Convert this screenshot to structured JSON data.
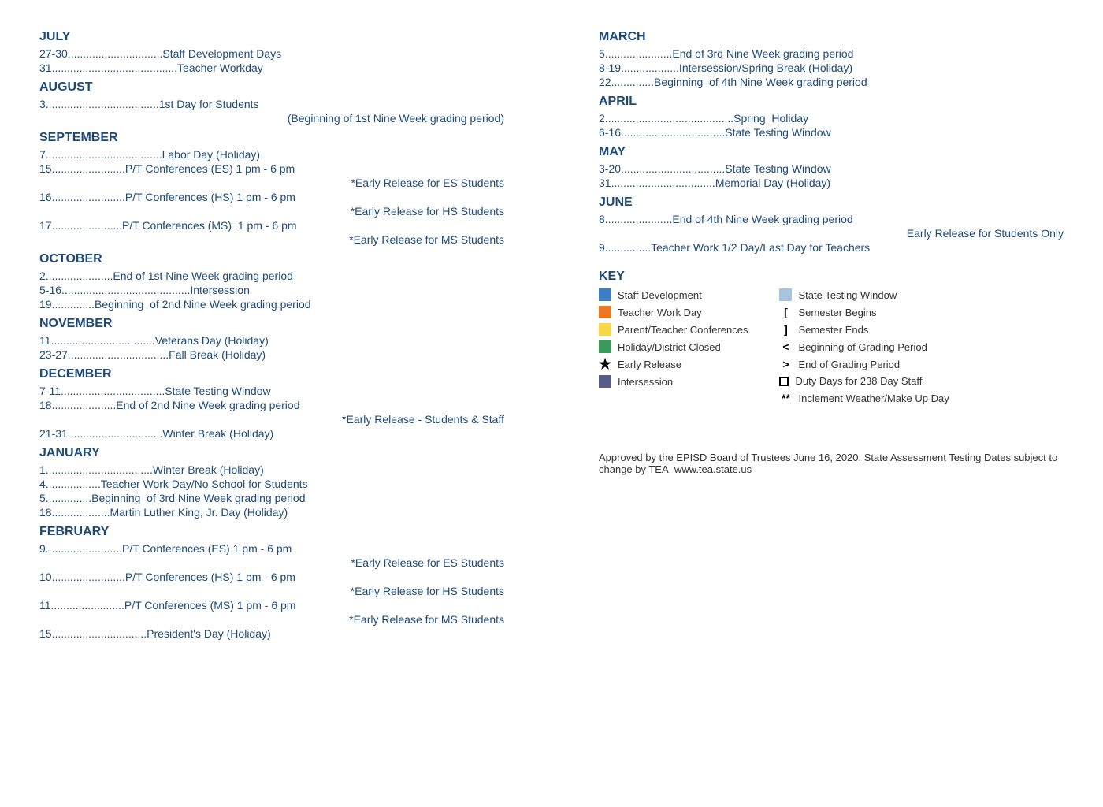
{
  "left": {
    "july": {
      "header": "JULY",
      "items": [
        {
          "dates": "27-30",
          "text": "Staff Development Days"
        },
        {
          "dates": "31",
          "text": "Teacher Workday"
        }
      ]
    },
    "august": {
      "header": "AUGUST",
      "items": [
        {
          "dates": "3",
          "text": "1st Day for Students"
        }
      ],
      "subs": [
        "(Beginning of 1st Nine Week grading period)"
      ]
    },
    "september": {
      "header": "SEPTEMBER",
      "items": [
        {
          "dates": "7",
          "text": "Labor Day (Holiday)"
        },
        {
          "dates": "15",
          "text": "P/T Conferences (ES) 1 pm - 6 pm"
        },
        {
          "sub": "*Early Release for ES Students"
        },
        {
          "dates": "16",
          "text": "P/T Conferences (HS) 1 pm - 6 pm"
        },
        {
          "sub": "*Early Release for HS Students"
        },
        {
          "dates": "17",
          "text": "P/T Conferences (MS)  1 pm - 6 pm"
        },
        {
          "sub": "*Early Release for MS Students"
        }
      ]
    },
    "october": {
      "header": "OCTOBER",
      "items": [
        {
          "dates": "2",
          "text": "End of 1st Nine Week grading period"
        },
        {
          "dates": "5-16",
          "text": "Intersession"
        },
        {
          "dates": "19",
          "text": "Beginning  of 2nd Nine Week grading period"
        }
      ]
    },
    "november": {
      "header": "NOVEMBER",
      "items": [
        {
          "dates": "11",
          "text": "Veterans Day (Holiday)"
        },
        {
          "dates": "23-27",
          "text": "Fall Break (Holiday)"
        }
      ]
    },
    "december": {
      "header": "DECEMBER",
      "items": [
        {
          "dates": "7-11",
          "text": "State Testing Window"
        },
        {
          "dates": "18",
          "text": "End of 2nd Nine Week grading period"
        },
        {
          "sub": "*Early Release - Students & Staff"
        },
        {
          "dates": "21-31",
          "text": "Winter Break (Holiday)"
        }
      ]
    },
    "january": {
      "header": "JANUARY",
      "items": [
        {
          "dates": "1",
          "text": "Winter Break (Holiday)"
        },
        {
          "dates": "4",
          "text": "Teacher Work Day/No School for Students"
        },
        {
          "dates": "5",
          "text": "Beginning  of 3rd Nine Week grading period"
        },
        {
          "dates": "18",
          "text": "Martin Luther King, Jr. Day (Holiday)"
        }
      ]
    },
    "february": {
      "header": "FEBRUARY",
      "items": [
        {
          "dates": "9",
          "text": "P/T Conferences (ES) 1 pm - 6 pm"
        },
        {
          "sub": "*Early Release for ES Students"
        },
        {
          "dates": "10",
          "text": "P/T Conferences (HS) 1 pm - 6 pm"
        },
        {
          "sub": "*Early Release for HS Students"
        },
        {
          "dates": "11",
          "text": "P/T Conferences (MS) 1 pm - 6 pm"
        },
        {
          "sub": "*Early Release for MS Students"
        },
        {
          "dates": "15",
          "text": "President's Day (Holiday)"
        }
      ]
    }
  },
  "right": {
    "march": {
      "header": "MARCH",
      "items": [
        {
          "dates": "5",
          "text": "End of 3rd Nine Week grading period"
        },
        {
          "dates": "8-19",
          "text": "Intersession/Spring Break (Holiday)"
        },
        {
          "dates": "22",
          "text": "Beginning  of 4th Nine Week grading period"
        }
      ]
    },
    "april": {
      "header": "APRIL",
      "items": [
        {
          "dates": "2",
          "text": "Spring  Holiday"
        },
        {
          "dates": "6-16",
          "text": "State Testing Window"
        }
      ]
    },
    "may": {
      "header": "MAY",
      "items": [
        {
          "dates": "3-20",
          "text": "State Testing Window"
        },
        {
          "dates": "31",
          "text": "Memorial Day (Holiday)"
        }
      ]
    },
    "june": {
      "header": "JUNE",
      "items": [
        {
          "dates": "8",
          "text": "End of 4th Nine Week grading period"
        },
        {
          "sub": "Early Release for Students Only"
        },
        {
          "dates": "9",
          "text": "Teacher Work 1/2 Day/Last Day for Teachers"
        }
      ]
    }
  },
  "key": {
    "header": "KEY",
    "left_items": [
      {
        "color": "#3a7fc3",
        "label": "Staff Development"
      },
      {
        "color": "#e87824",
        "label": "Teacher Work Day"
      },
      {
        "color": "#f9d648",
        "label": "Parent/Teacher Conferences"
      },
      {
        "color": "#3a9b5c",
        "label": "Holiday/District Closed"
      },
      {
        "symbol": "star",
        "label": "Early Release"
      },
      {
        "color": "#5a5a8a",
        "label": "Intersession"
      }
    ],
    "right_items": [
      {
        "color": "#a8c5e0",
        "label": "State Testing Window"
      },
      {
        "symbol": "[",
        "label": "Semester Begins"
      },
      {
        "symbol": "]",
        "label": "Semester Ends"
      },
      {
        "symbol": "<",
        "label": "Beginning of Grading Period"
      },
      {
        "symbol": ">",
        "label": "End of Grading Period"
      },
      {
        "symbol": "square",
        "label": "Duty Days for 238 Day Staff"
      },
      {
        "symbol": "**",
        "label": "Inclement Weather/Make Up Day"
      }
    ]
  },
  "footer": "Approved by the EPISD Board of Trustees June 16, 2020. State Assessment Testing Dates subject to change by TEA. www.tea.state.us",
  "colors": {
    "text": "#1e4a7a",
    "body_text": "#333333"
  },
  "layout": {
    "entry_width_chars": 58
  }
}
